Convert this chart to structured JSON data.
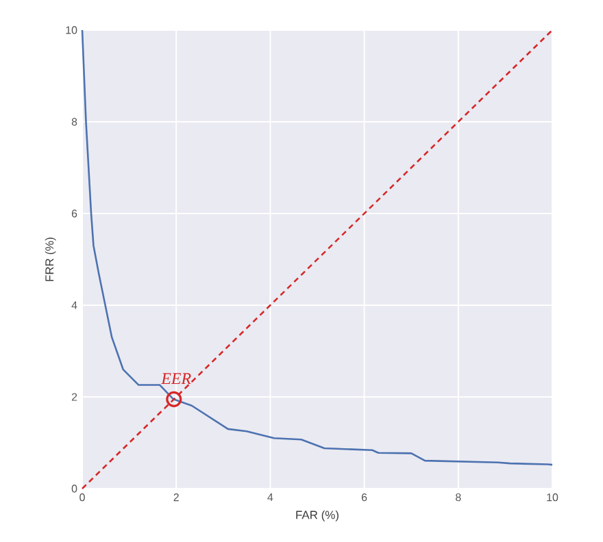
{
  "chart_data": {
    "type": "line",
    "xlabel": "FAR (%)",
    "ylabel": "FRR (%)",
    "xlim": [
      0,
      10
    ],
    "ylim": [
      0,
      10
    ],
    "xticks": [
      0,
      2,
      4,
      6,
      8,
      10
    ],
    "yticks": [
      0,
      2,
      4,
      6,
      8,
      10
    ],
    "grid": true,
    "series": [
      {
        "color": "#4c72b0",
        "line_style": "solid",
        "x": [
          0,
          0.08,
          0.19,
          0.24,
          0.35,
          0.49,
          0.63,
          0.87,
          1.2,
          1.65,
          1.94,
          2.33,
          3.1,
          3.5,
          4.08,
          4.66,
          5.15,
          6.17,
          6.3,
          7.0,
          7.29,
          8.84,
          9.1,
          9.9,
          10
        ],
        "values": [
          10,
          8,
          6,
          5.3,
          4.7,
          4,
          3.3,
          2.6,
          2.26,
          2.26,
          1.95,
          1.81,
          1.3,
          1.25,
          1.1,
          1.07,
          0.88,
          0.84,
          0.78,
          0.77,
          0.61,
          0.57,
          0.55,
          0.53,
          0.52
        ]
      },
      {
        "type": "line",
        "color": "#d62728",
        "line_style": "dashed",
        "x": [
          0,
          10
        ],
        "values": [
          0,
          10
        ]
      },
      {
        "type": "scatter",
        "color": "#d62728",
        "marker": "circle",
        "x": [
          1.95
        ],
        "values": [
          1.95
        ]
      }
    ],
    "annotations": [
      {
        "text": "EER",
        "x": 2,
        "y": 2
      }
    ]
  }
}
